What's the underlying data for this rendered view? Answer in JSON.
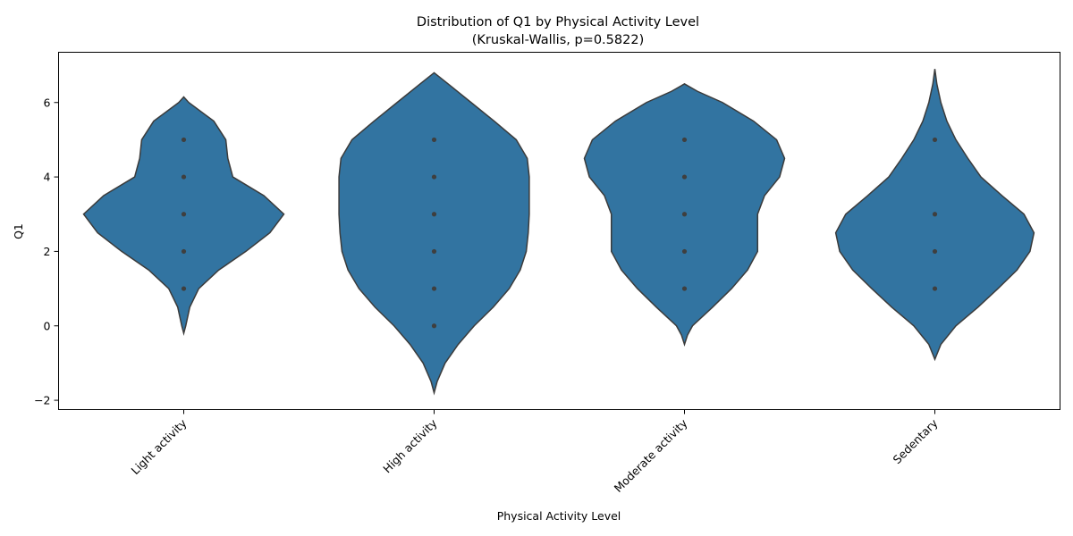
{
  "chart_data": {
    "type": "violin",
    "title": "Distribution of Q1 by Physical Activity Level",
    "subtitle": "(Kruskal-Wallis, p=0.5822)",
    "xlabel": "Physical Activity Level",
    "ylabel": "Q1",
    "ylim": [
      -2.25,
      7.35
    ],
    "yticks": [
      -2,
      0,
      2,
      4,
      6
    ],
    "grid": false,
    "inner": "point",
    "color": "#3274a1",
    "categories": [
      "Light activity",
      "High activity",
      "Moderate activity",
      "Sedentary"
    ],
    "series": [
      {
        "category": "Light activity",
        "observations": [
          1,
          2,
          3,
          4,
          5
        ],
        "range": [
          -0.2,
          6.15
        ],
        "density": [
          [
            -0.2,
            0.0
          ],
          [
            0.0,
            0.02
          ],
          [
            0.5,
            0.06
          ],
          [
            1.0,
            0.15
          ],
          [
            1.5,
            0.35
          ],
          [
            2.0,
            0.62
          ],
          [
            2.5,
            0.86
          ],
          [
            3.0,
            1.0
          ],
          [
            3.5,
            0.8
          ],
          [
            4.0,
            0.49
          ],
          [
            4.5,
            0.44
          ],
          [
            5.0,
            0.42
          ],
          [
            5.5,
            0.3
          ],
          [
            6.0,
            0.05
          ],
          [
            6.15,
            0.0
          ]
        ]
      },
      {
        "category": "High activity",
        "observations": [
          0,
          1,
          2,
          3,
          4,
          5
        ],
        "range": [
          -1.8,
          6.8
        ],
        "density": [
          [
            -1.8,
            0.0
          ],
          [
            -1.5,
            0.03
          ],
          [
            -1.0,
            0.11
          ],
          [
            -0.5,
            0.24
          ],
          [
            0.0,
            0.4
          ],
          [
            0.5,
            0.59
          ],
          [
            1.0,
            0.75
          ],
          [
            1.5,
            0.86
          ],
          [
            2.0,
            0.92
          ],
          [
            2.5,
            0.94
          ],
          [
            3.0,
            0.95
          ],
          [
            3.5,
            0.95
          ],
          [
            4.0,
            0.95
          ],
          [
            4.5,
            0.93
          ],
          [
            5.0,
            0.82
          ],
          [
            5.5,
            0.6
          ],
          [
            6.0,
            0.37
          ],
          [
            6.5,
            0.14
          ],
          [
            6.8,
            0.0
          ]
        ]
      },
      {
        "category": "Moderate activity",
        "observations": [
          1,
          2,
          3,
          4,
          5
        ],
        "range": [
          -0.5,
          6.5
        ],
        "density": [
          [
            -0.5,
            0.0
          ],
          [
            -0.25,
            0.03
          ],
          [
            0.0,
            0.08
          ],
          [
            0.5,
            0.28
          ],
          [
            1.0,
            0.47
          ],
          [
            1.5,
            0.63
          ],
          [
            2.0,
            0.73
          ],
          [
            2.5,
            0.73
          ],
          [
            3.0,
            0.73
          ],
          [
            3.5,
            0.8
          ],
          [
            4.0,
            0.95
          ],
          [
            4.5,
            1.0
          ],
          [
            5.0,
            0.92
          ],
          [
            5.5,
            0.69
          ],
          [
            6.0,
            0.38
          ],
          [
            6.3,
            0.13
          ],
          [
            6.5,
            0.0
          ]
        ]
      },
      {
        "category": "Sedentary",
        "observations": [
          1,
          2,
          3,
          5
        ],
        "range": [
          -0.9,
          6.9
        ],
        "density": [
          [
            -0.9,
            0.0
          ],
          [
            -0.5,
            0.06
          ],
          [
            0.0,
            0.21
          ],
          [
            0.5,
            0.43
          ],
          [
            1.0,
            0.63
          ],
          [
            1.5,
            0.82
          ],
          [
            2.0,
            0.95
          ],
          [
            2.5,
            0.99
          ],
          [
            3.0,
            0.89
          ],
          [
            3.5,
            0.67
          ],
          [
            4.0,
            0.46
          ],
          [
            4.5,
            0.33
          ],
          [
            5.0,
            0.21
          ],
          [
            5.5,
            0.12
          ],
          [
            6.0,
            0.06
          ],
          [
            6.5,
            0.02
          ],
          [
            6.9,
            0.0
          ]
        ]
      }
    ]
  }
}
